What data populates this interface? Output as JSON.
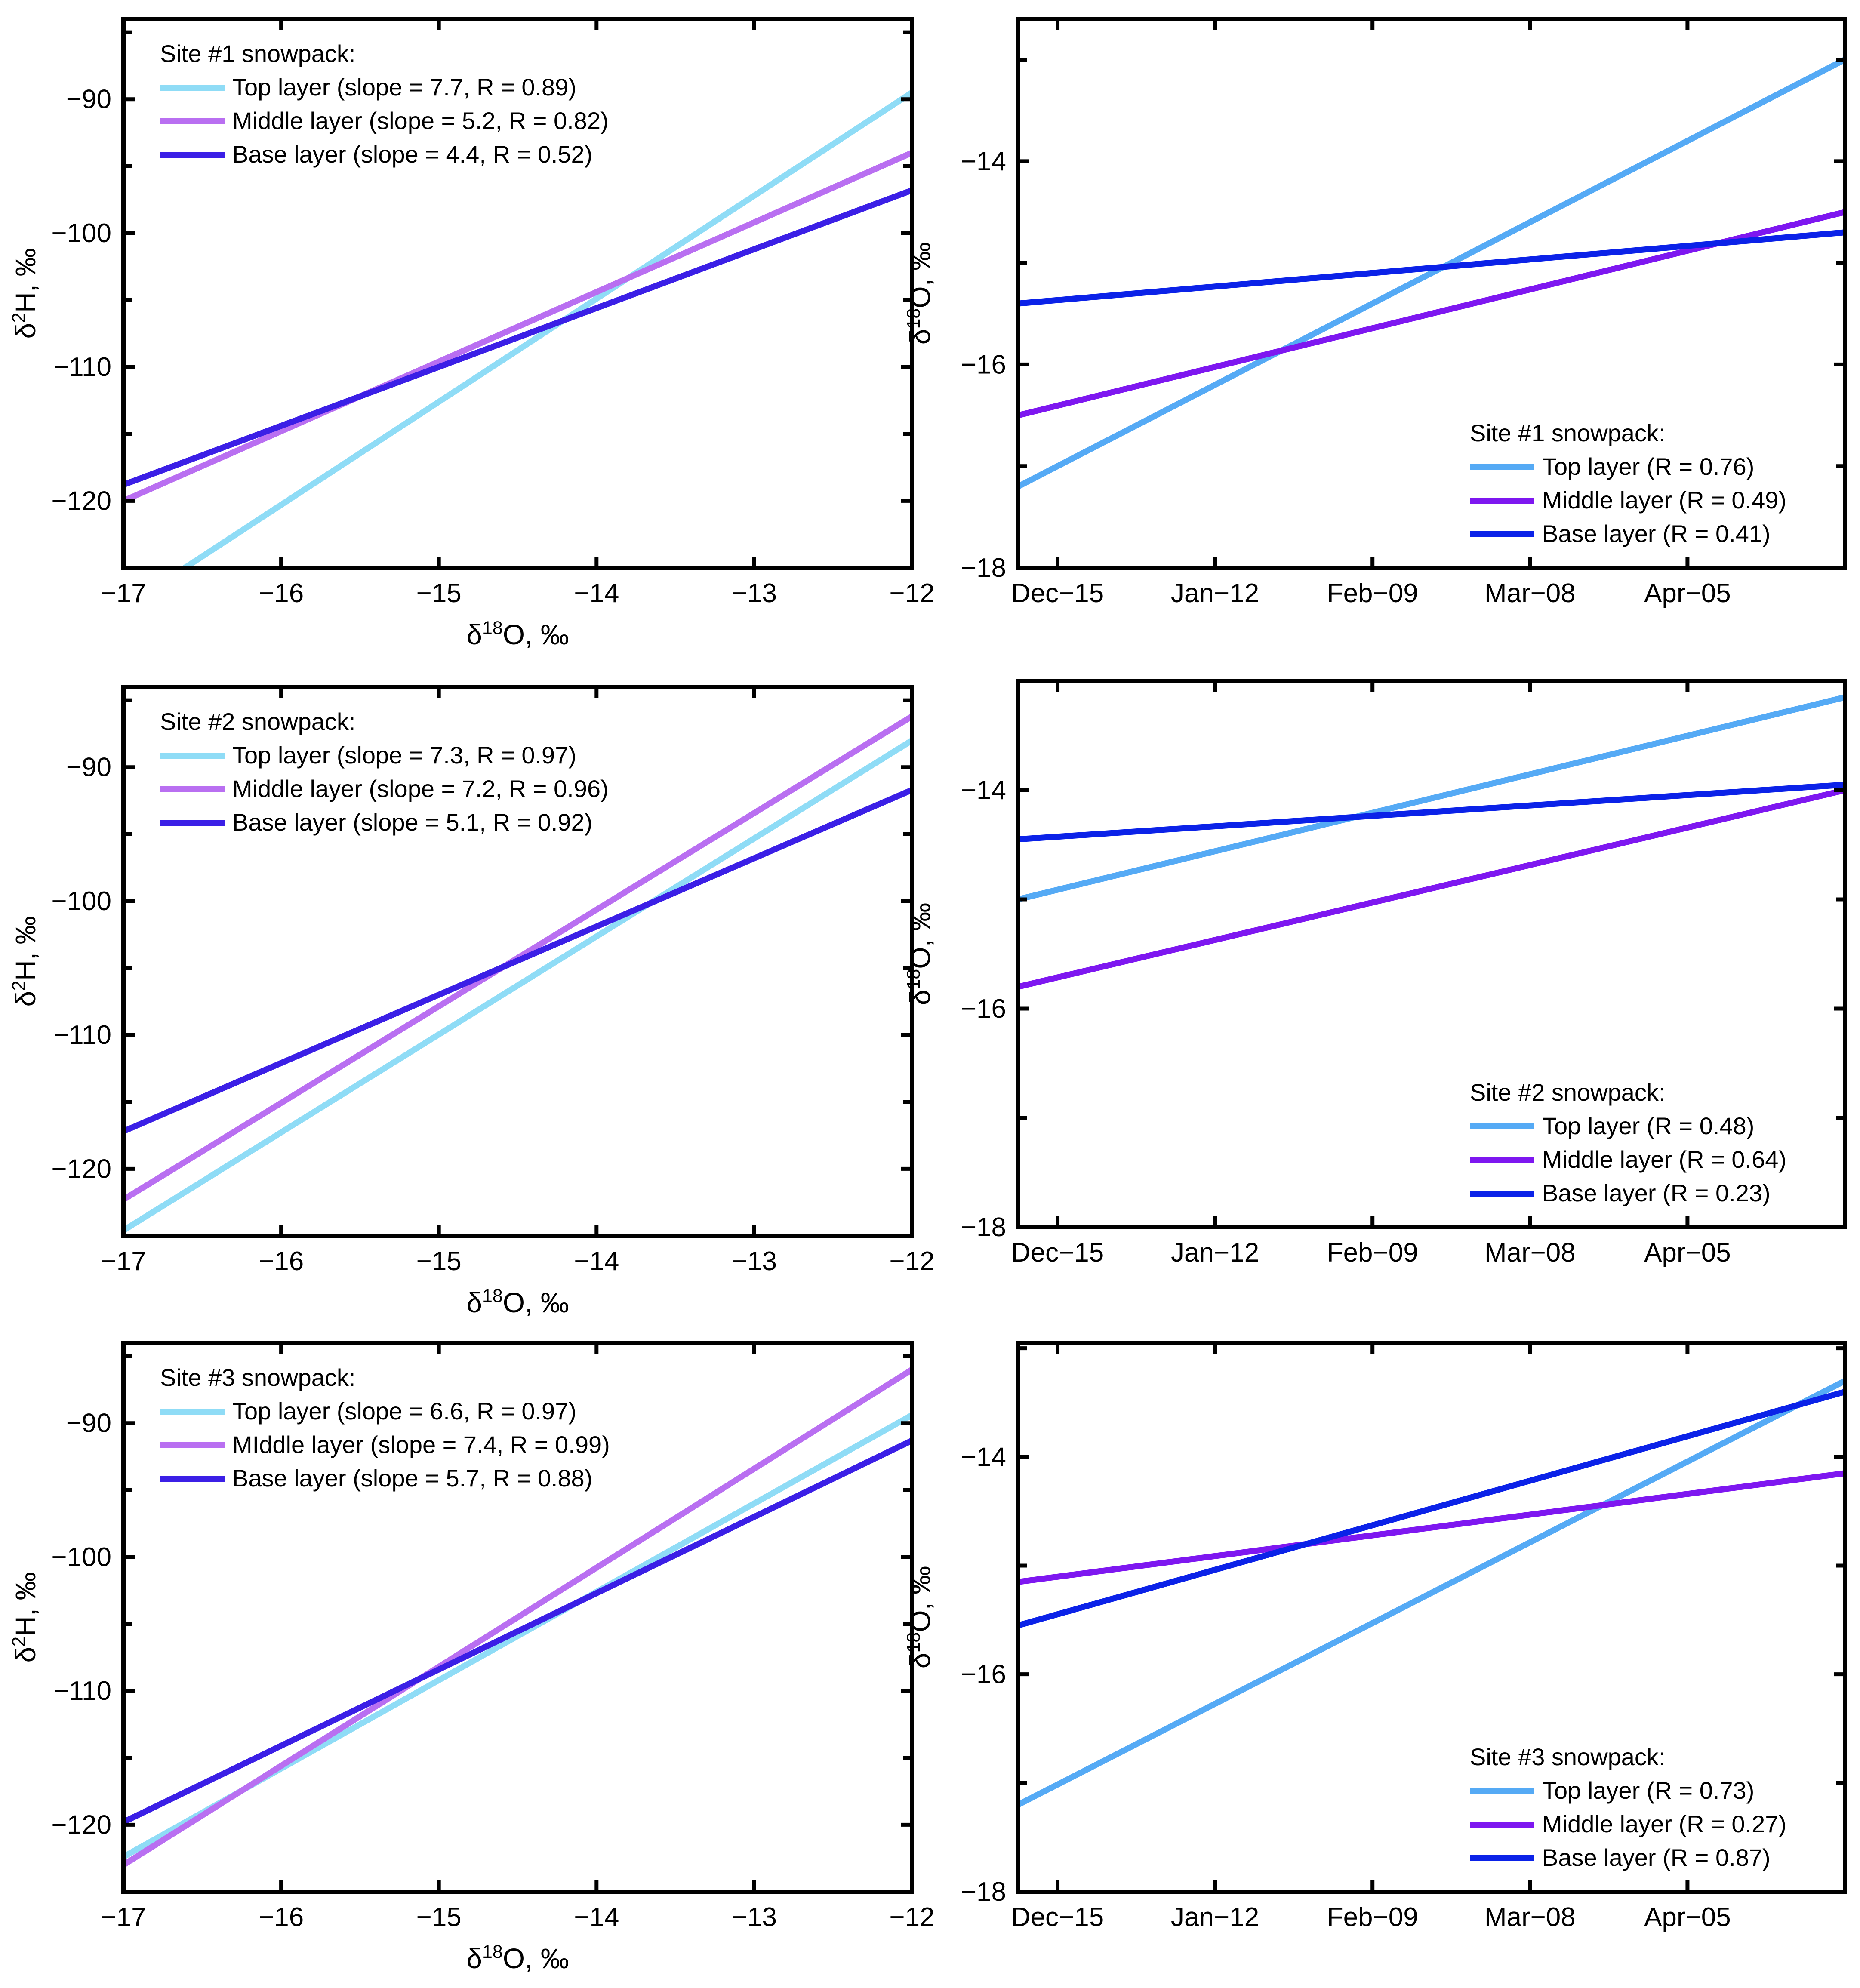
{
  "figure": {
    "background": "#ffffff"
  },
  "chart_data": [
    {
      "type": "line",
      "panel": "top-left",
      "xlabel": "δ18O, ‰",
      "ylabel": "δ2H, ‰",
      "xlim": [
        -17,
        -12
      ],
      "ylim": [
        -125,
        -84
      ],
      "xticks": [
        -17,
        -16,
        -15,
        -14,
        -13,
        -12
      ],
      "xtick_labels": [
        "−17",
        "−16",
        "−15",
        "−14",
        "−13",
        "−12"
      ],
      "yticks": [
        -120,
        -110,
        -100,
        -90
      ],
      "ytick_labels": [
        "−120",
        "−110",
        "−100",
        "−90"
      ],
      "legend": {
        "title": "Site #1 snowpack:",
        "placement": "top-left"
      },
      "series": [
        {
          "name": "Top layer (slope = 7.7, R = 0.89)",
          "color": "#8fdcf6",
          "x": [
            -17,
            -12
          ],
          "y": [
            -128.0,
            -89.5
          ]
        },
        {
          "name": "Middle layer (slope = 5.2, R = 0.82)",
          "color": "#b96ff1",
          "x": [
            -17,
            -12
          ],
          "y": [
            -120.0,
            -94.0
          ]
        },
        {
          "name": "Base layer (slope = 4.4, R = 0.52)",
          "color": "#3b1fe6",
          "x": [
            -17,
            -12
          ],
          "y": [
            -118.8,
            -96.8
          ]
        }
      ]
    },
    {
      "type": "line",
      "panel": "top-right",
      "ylabel": "δ18O, ‰",
      "xlim": [
        "2015-12-08",
        "2016-05-03"
      ],
      "ylim": [
        -18,
        -12.6
      ],
      "xticks": [
        "2015-12-15",
        "2016-01-12",
        "2016-02-09",
        "2016-03-08",
        "2016-04-05"
      ],
      "xtick_labels": [
        "Dec−15",
        "Jan−12",
        "Feb−09",
        "Mar−08",
        "Apr−05"
      ],
      "yticks": [
        -18,
        -16,
        -14
      ],
      "ytick_labels": [
        "−18",
        "−16",
        "−14"
      ],
      "legend": {
        "title": "Site #1 snowpack:",
        "placement": "bottom-right"
      },
      "series": [
        {
          "name": "Top layer (R = 0.76)",
          "color": "#55aaf5",
          "x": [
            "2015-12-08",
            "2016-05-03"
          ],
          "y": [
            -17.2,
            -13.0
          ]
        },
        {
          "name": "Middle layer (R = 0.49)",
          "color": "#7e17f0",
          "x": [
            "2015-12-08",
            "2016-05-03"
          ],
          "y": [
            -16.5,
            -14.5
          ]
        },
        {
          "name": "Base layer (R = 0.41)",
          "color": "#0b22e8",
          "x": [
            "2015-12-08",
            "2016-05-03"
          ],
          "y": [
            -15.4,
            -14.7
          ]
        }
      ]
    },
    {
      "type": "line",
      "panel": "middle-left",
      "xlabel": "δ18O, ‰",
      "ylabel": "δ2H, ‰",
      "xlim": [
        -17,
        -12
      ],
      "ylim": [
        -125,
        -84
      ],
      "xticks": [
        -17,
        -16,
        -15,
        -14,
        -13,
        -12
      ],
      "xtick_labels": [
        "−17",
        "−16",
        "−15",
        "−14",
        "−13",
        "−12"
      ],
      "yticks": [
        -120,
        -110,
        -100,
        -90
      ],
      "ytick_labels": [
        "−120",
        "−110",
        "−100",
        "−90"
      ],
      "legend": {
        "title": "Site #2 snowpack:",
        "placement": "top-left"
      },
      "series": [
        {
          "name": "Top layer (slope = 7.3, R = 0.97)",
          "color": "#8fdcf6",
          "x": [
            -17,
            -12
          ],
          "y": [
            -124.6,
            -88.0
          ]
        },
        {
          "name": "Middle layer (slope = 7.2, R = 0.96)",
          "color": "#b96ff1",
          "x": [
            -17,
            -12
          ],
          "y": [
            -122.3,
            -86.2
          ]
        },
        {
          "name": "Base layer (slope = 5.1, R = 0.92)",
          "color": "#3b1fe6",
          "x": [
            -17,
            -12
          ],
          "y": [
            -117.2,
            -91.7
          ]
        }
      ]
    },
    {
      "type": "line",
      "panel": "middle-right",
      "ylabel": "δ18O, ‰",
      "xlim": [
        "2015-12-08",
        "2016-05-03"
      ],
      "ylim": [
        -18,
        -13.0
      ],
      "xticks": [
        "2015-12-15",
        "2016-01-12",
        "2016-02-09",
        "2016-03-08",
        "2016-04-05"
      ],
      "xtick_labels": [
        "Dec−15",
        "Jan−12",
        "Feb−09",
        "Mar−08",
        "Apr−05"
      ],
      "yticks": [
        -18,
        -16,
        -14
      ],
      "ytick_labels": [
        "−18",
        "−16",
        "−14"
      ],
      "legend": {
        "title": "Site #2 snowpack:",
        "placement": "bottom-right"
      },
      "series": [
        {
          "name": "Top layer (R = 0.48)",
          "color": "#55aaf5",
          "x": [
            "2015-12-08",
            "2016-05-03"
          ],
          "y": [
            -15.0,
            -13.15
          ]
        },
        {
          "name": "Middle layer (R = 0.64)",
          "color": "#7e17f0",
          "x": [
            "2015-12-08",
            "2016-05-03"
          ],
          "y": [
            -15.8,
            -14.0
          ]
        },
        {
          "name": "Base layer (R = 0.23)",
          "color": "#0b22e8",
          "x": [
            "2015-12-08",
            "2016-05-03"
          ],
          "y": [
            -14.45,
            -13.95
          ]
        }
      ]
    },
    {
      "type": "line",
      "panel": "bottom-left",
      "xlabel": "δ18O, ‰",
      "ylabel": "δ2H, ‰",
      "xlim": [
        -17,
        -12
      ],
      "ylim": [
        -125,
        -84
      ],
      "xticks": [
        -17,
        -16,
        -15,
        -14,
        -13,
        -12
      ],
      "xtick_labels": [
        "−17",
        "−16",
        "−15",
        "−14",
        "−13",
        "−12"
      ],
      "yticks": [
        -120,
        -110,
        -100,
        -90
      ],
      "ytick_labels": [
        "−120",
        "−110",
        "−100",
        "−90"
      ],
      "legend": {
        "title": "Site #3 snowpack:",
        "placement": "top-left"
      },
      "series": [
        {
          "name": "Top layer (slope = 6.6, R = 0.97)",
          "color": "#8fdcf6",
          "x": [
            -17,
            -12
          ],
          "y": [
            -122.4,
            -89.4
          ]
        },
        {
          "name": "MIddle layer (slope = 7.4, R = 0.99)",
          "color": "#b96ff1",
          "x": [
            -17,
            -12
          ],
          "y": [
            -123.0,
            -86.0
          ]
        },
        {
          "name": "Base layer (slope = 5.7, R = 0.88)",
          "color": "#3b1fe6",
          "x": [
            -17,
            -12
          ],
          "y": [
            -119.8,
            -91.3
          ]
        }
      ]
    },
    {
      "type": "line",
      "panel": "bottom-right",
      "ylabel": "δ18O, ‰",
      "xlim": [
        "2015-12-08",
        "2016-05-03"
      ],
      "ylim": [
        -18,
        -12.95
      ],
      "xticks": [
        "2015-12-15",
        "2016-01-12",
        "2016-02-09",
        "2016-03-08",
        "2016-04-05"
      ],
      "xtick_labels": [
        "Dec−15",
        "Jan−12",
        "Feb−09",
        "Mar−08",
        "Apr−05"
      ],
      "yticks": [
        -18,
        -16,
        -14
      ],
      "ytick_labels": [
        "−18",
        "−16",
        "−14"
      ],
      "legend": {
        "title": "Site #3 snowpack:",
        "placement": "bottom-right"
      },
      "series": [
        {
          "name": "Top layer (R = 0.73)",
          "color": "#55aaf5",
          "x": [
            "2015-12-08",
            "2016-05-03"
          ],
          "y": [
            -17.2,
            -13.3
          ]
        },
        {
          "name": "Middle layer (R = 0.27)",
          "color": "#7e17f0",
          "x": [
            "2015-12-08",
            "2016-05-03"
          ],
          "y": [
            -15.15,
            -14.15
          ]
        },
        {
          "name": "Base layer (R = 0.87)",
          "color": "#0b22e8",
          "x": [
            "2015-12-08",
            "2016-05-03"
          ],
          "y": [
            -15.55,
            -13.4
          ]
        }
      ]
    }
  ]
}
